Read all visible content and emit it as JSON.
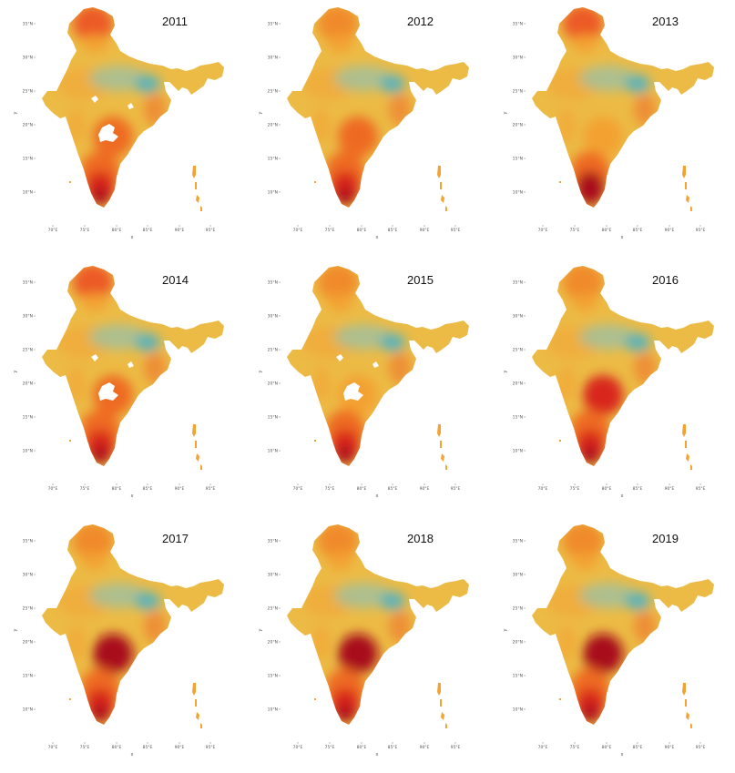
{
  "figure": {
    "panels": [
      {
        "year": "2011",
        "center_heat": "mid",
        "south_heat": "high",
        "north_heat": "high",
        "gaps": true,
        "east_cool": true
      },
      {
        "year": "2012",
        "center_heat": "mid",
        "south_heat": "high",
        "north_heat": "mid",
        "gaps": false,
        "east_cool": true
      },
      {
        "year": "2013",
        "center_heat": "low",
        "south_heat": "very-high",
        "north_heat": "high",
        "gaps": false,
        "east_cool": true
      },
      {
        "year": "2014",
        "center_heat": "mid",
        "south_heat": "high",
        "north_heat": "high",
        "gaps": true,
        "east_cool": true
      },
      {
        "year": "2015",
        "center_heat": "low",
        "south_heat": "high",
        "north_heat": "mid",
        "gaps": true,
        "east_cool": true
      },
      {
        "year": "2016",
        "center_heat": "high",
        "south_heat": "high",
        "north_heat": "mid",
        "gaps": false,
        "east_cool": true
      },
      {
        "year": "2017",
        "center_heat": "very-high",
        "south_heat": "high",
        "north_heat": "mid",
        "gaps": false,
        "east_cool": true
      },
      {
        "year": "2018",
        "center_heat": "very-high",
        "south_heat": "high",
        "north_heat": "mid",
        "gaps": false,
        "east_cool": true
      },
      {
        "year": "2019",
        "center_heat": "very-high",
        "south_heat": "high",
        "north_heat": "mid",
        "gaps": false,
        "east_cool": true
      }
    ],
    "x_ticks": [
      "70°E",
      "75°E",
      "80°E",
      "85°E",
      "90°E",
      "95°E"
    ],
    "y_ticks": [
      "35°N",
      "30°N",
      "25°N",
      "20°N",
      "15°N",
      "10°N"
    ],
    "x_label": "x",
    "y_label": "y",
    "colors": {
      "base": "#ecbb45",
      "cool": "#5fb3b8",
      "cool_mid": "#9fc0a0",
      "warm": "#f3a233",
      "hot": "#ee6a24",
      "hotter": "#d8281f",
      "hottest": "#a8101a",
      "north": "#f08a2c",
      "north_hot": "#ec5a26"
    }
  }
}
